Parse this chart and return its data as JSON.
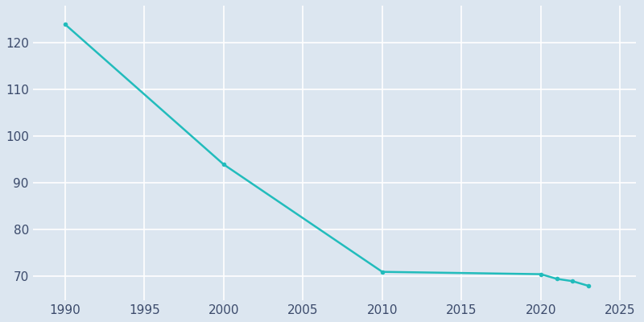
{
  "years": [
    1990,
    2000,
    2010,
    2020,
    2021,
    2022,
    2023
  ],
  "population": [
    124,
    94,
    71,
    70.5,
    69.5,
    69,
    68
  ],
  "line_color": "#22BCBC",
  "marker_color": "#22BCBC",
  "background_color": "#DCE6F0",
  "plot_bg_color": "#DCE6F0",
  "outer_bg_color": "#DCE6F0",
  "grid_color": "#FFFFFF",
  "tick_color": "#3B4A6B",
  "xlim": [
    1988,
    2026
  ],
  "ylim": [
    65,
    128
  ],
  "xticks": [
    1990,
    1995,
    2000,
    2005,
    2010,
    2015,
    2020,
    2025
  ],
  "yticks": [
    70,
    80,
    90,
    100,
    110,
    120
  ],
  "figsize": [
    8.0,
    4.0
  ],
  "dpi": 100,
  "tick_fontsize": 11,
  "linewidth": 1.8,
  "markersize": 4
}
